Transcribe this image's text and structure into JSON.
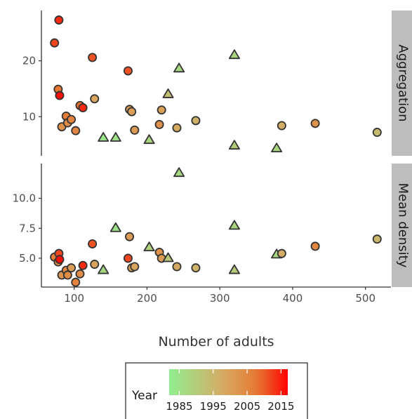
{
  "chart_data": {
    "type": "scatter",
    "xlabel": "Number of adults",
    "x_ticks": [
      100,
      200,
      300,
      400,
      500
    ],
    "xlim": [
      55,
      535
    ],
    "colors": {
      "low": "#90ee90",
      "high": "#ff0000",
      "point_border": "#333333",
      "strip_bg": "#bdbdbd"
    },
    "shape_legend": "circle = later years, triangle = earlier years (by color)",
    "panels": [
      {
        "strip": "Aggregation",
        "ylim": [
          3,
          29
        ],
        "y_ticks": [
          10,
          20
        ],
        "y_tick_labels": [
          "10",
          "20"
        ],
        "points": [
          {
            "x": 73,
            "y": 23.2,
            "shape": "circle",
            "year": 2012
          },
          {
            "x": 79,
            "y": 27.3,
            "shape": "circle",
            "year": 2014
          },
          {
            "x": 78,
            "y": 14.9,
            "shape": "circle",
            "year": 2008
          },
          {
            "x": 80,
            "y": 13.8,
            "shape": "circle",
            "year": 2016
          },
          {
            "x": 83,
            "y": 8.2,
            "shape": "circle",
            "year": 2003
          },
          {
            "x": 89,
            "y": 10.1,
            "shape": "circle",
            "year": 2007
          },
          {
            "x": 91,
            "y": 8.9,
            "shape": "circle",
            "year": 2004
          },
          {
            "x": 96,
            "y": 9.5,
            "shape": "circle",
            "year": 2006
          },
          {
            "x": 102,
            "y": 7.5,
            "shape": "circle",
            "year": 2005
          },
          {
            "x": 108,
            "y": 12.0,
            "shape": "circle",
            "year": 2009
          },
          {
            "x": 112,
            "y": 11.6,
            "shape": "circle",
            "year": 2014
          },
          {
            "x": 125,
            "y": 20.6,
            "shape": "circle",
            "year": 2011
          },
          {
            "x": 128,
            "y": 13.2,
            "shape": "circle",
            "year": 1999
          },
          {
            "x": 140,
            "y": 6.2,
            "shape": "triangle",
            "year": 1984
          },
          {
            "x": 157,
            "y": 6.2,
            "shape": "triangle",
            "year": 1985
          },
          {
            "x": 174,
            "y": 18.2,
            "shape": "circle",
            "year": 2011
          },
          {
            "x": 176,
            "y": 11.3,
            "shape": "circle",
            "year": 2001
          },
          {
            "x": 179,
            "y": 10.9,
            "shape": "circle",
            "year": 2000
          },
          {
            "x": 183,
            "y": 7.6,
            "shape": "circle",
            "year": 2001
          },
          {
            "x": 203,
            "y": 5.8,
            "shape": "triangle",
            "year": 1988
          },
          {
            "x": 217,
            "y": 8.6,
            "shape": "circle",
            "year": 2003
          },
          {
            "x": 220,
            "y": 11.2,
            "shape": "circle",
            "year": 2000
          },
          {
            "x": 229,
            "y": 14.0,
            "shape": "triangle",
            "year": 1993
          },
          {
            "x": 241,
            "y": 8.0,
            "shape": "circle",
            "year": 1998
          },
          {
            "x": 244,
            "y": 18.6,
            "shape": "triangle",
            "year": 1987
          },
          {
            "x": 267,
            "y": 9.3,
            "shape": "circle",
            "year": 1996
          },
          {
            "x": 320,
            "y": 21.0,
            "shape": "triangle",
            "year": 1988
          },
          {
            "x": 320,
            "y": 4.8,
            "shape": "triangle",
            "year": 1990
          },
          {
            "x": 378,
            "y": 4.3,
            "shape": "triangle",
            "year": 1987
          },
          {
            "x": 385,
            "y": 8.4,
            "shape": "circle",
            "year": 1997
          },
          {
            "x": 431,
            "y": 8.8,
            "shape": "circle",
            "year": 2003
          },
          {
            "x": 516,
            "y": 7.2,
            "shape": "circle",
            "year": 1994
          }
        ]
      },
      {
        "strip": "Mean density",
        "ylim": [
          2.6,
          12.9
        ],
        "y_ticks": [
          5.0,
          7.5,
          10.0
        ],
        "y_tick_labels": [
          "5.0",
          "7.5",
          "10.0"
        ],
        "points": [
          {
            "x": 73,
            "y": 5.1,
            "shape": "circle",
            "year": 2007
          },
          {
            "x": 78,
            "y": 4.7,
            "shape": "circle",
            "year": 2004
          },
          {
            "x": 79,
            "y": 5.4,
            "shape": "circle",
            "year": 2012
          },
          {
            "x": 80,
            "y": 4.9,
            "shape": "circle",
            "year": 2016
          },
          {
            "x": 83,
            "y": 3.6,
            "shape": "circle",
            "year": 2002
          },
          {
            "x": 89,
            "y": 4.0,
            "shape": "circle",
            "year": 2005
          },
          {
            "x": 91,
            "y": 3.6,
            "shape": "circle",
            "year": 2004
          },
          {
            "x": 96,
            "y": 4.2,
            "shape": "circle",
            "year": 2000
          },
          {
            "x": 102,
            "y": 3.0,
            "shape": "circle",
            "year": 2006
          },
          {
            "x": 108,
            "y": 3.7,
            "shape": "circle",
            "year": 2004
          },
          {
            "x": 112,
            "y": 4.4,
            "shape": "circle",
            "year": 2014
          },
          {
            "x": 125,
            "y": 6.2,
            "shape": "circle",
            "year": 2011
          },
          {
            "x": 128,
            "y": 4.5,
            "shape": "circle",
            "year": 1999
          },
          {
            "x": 140,
            "y": 4.0,
            "shape": "triangle",
            "year": 1987
          },
          {
            "x": 157,
            "y": 7.5,
            "shape": "triangle",
            "year": 1985
          },
          {
            "x": 174,
            "y": 5.0,
            "shape": "circle",
            "year": 2012
          },
          {
            "x": 176,
            "y": 6.8,
            "shape": "circle",
            "year": 2001
          },
          {
            "x": 179,
            "y": 4.2,
            "shape": "circle",
            "year": 2000
          },
          {
            "x": 183,
            "y": 4.3,
            "shape": "circle",
            "year": 1999
          },
          {
            "x": 203,
            "y": 5.9,
            "shape": "triangle",
            "year": 1989
          },
          {
            "x": 217,
            "y": 5.5,
            "shape": "circle",
            "year": 2003
          },
          {
            "x": 220,
            "y": 5.0,
            "shape": "circle",
            "year": 2001
          },
          {
            "x": 229,
            "y": 5.0,
            "shape": "triangle",
            "year": 1991
          },
          {
            "x": 241,
            "y": 4.3,
            "shape": "circle",
            "year": 1998
          },
          {
            "x": 244,
            "y": 12.1,
            "shape": "triangle",
            "year": 1987
          },
          {
            "x": 267,
            "y": 4.2,
            "shape": "circle",
            "year": 1996
          },
          {
            "x": 320,
            "y": 7.7,
            "shape": "triangle",
            "year": 1988
          },
          {
            "x": 320,
            "y": 4.0,
            "shape": "triangle",
            "year": 1990
          },
          {
            "x": 378,
            "y": 5.3,
            "shape": "triangle",
            "year": 1987
          },
          {
            "x": 385,
            "y": 5.4,
            "shape": "circle",
            "year": 1997
          },
          {
            "x": 431,
            "y": 6.0,
            "shape": "circle",
            "year": 2005
          },
          {
            "x": 516,
            "y": 6.6,
            "shape": "circle",
            "year": 1995
          }
        ]
      }
    ],
    "legend": {
      "title": "Year",
      "range": [
        1982,
        2017
      ],
      "ticks": [
        1985,
        1995,
        2005,
        2015
      ],
      "tick_labels": [
        "1985",
        "1995",
        "2005",
        "2015"
      ],
      "position": "bottom"
    }
  }
}
